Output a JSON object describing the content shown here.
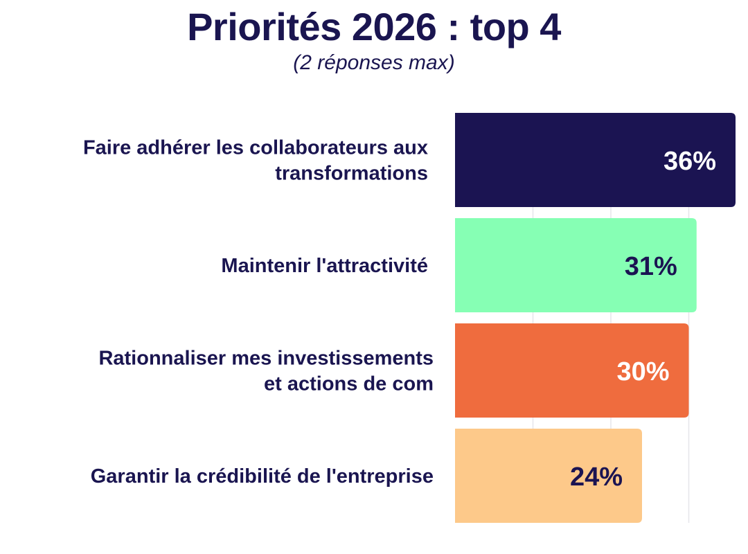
{
  "chart_data": {
    "type": "bar",
    "orientation": "horizontal",
    "title": "Priorités 2026 : top 4",
    "subtitle": "(2 réponses max)",
    "xlabel": "",
    "ylabel": "",
    "xlim": [
      0,
      36
    ],
    "grid": true,
    "unit": "%",
    "categories": [
      [
        "Faire adhérer les collaborateurs aux",
        "transformations"
      ],
      [
        "Maintenir l'attractivité"
      ],
      [
        "Rationnaliser mes investissements",
        "et actions de com"
      ],
      [
        "Garantir la crédibilité de l'entreprise"
      ]
    ],
    "values": [
      36,
      31,
      30,
      24
    ],
    "value_labels": [
      "36%",
      "31%",
      "30%",
      "24%"
    ],
    "colors": [
      "#1b1452",
      "#86ffb4",
      "#ef6c3e",
      "#fdc98a"
    ],
    "value_label_colors": [
      "#ffffff",
      "#1b1452",
      "#ffffff",
      "#1b1452"
    ]
  }
}
